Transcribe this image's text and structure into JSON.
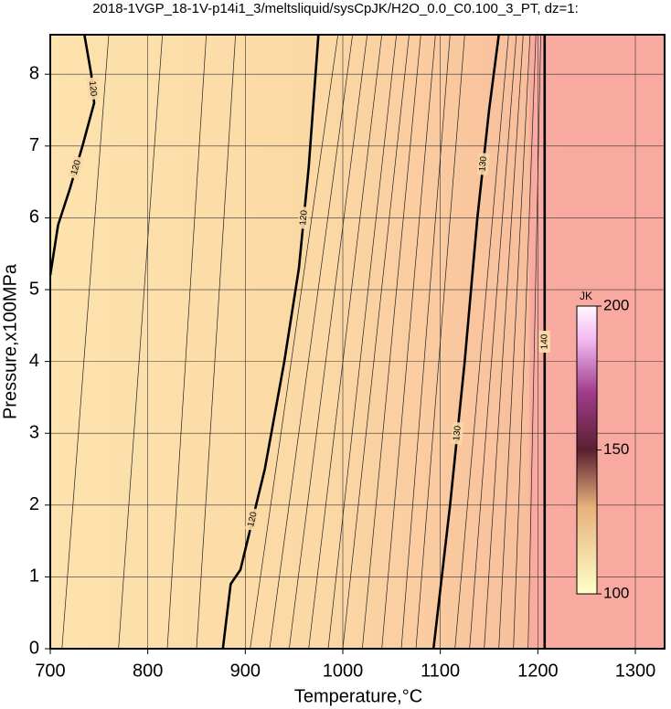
{
  "chart_data": {
    "type": "contour",
    "title": "2018-1VGP_18-1V-p14i1_3/meltsliquid/sysCpJK/H2O_0.0_C0.100_3_PT, dz=1:",
    "x_label": "Temperature,°C",
    "y_label": "Pressure,x100MPa",
    "xlim": [
      700,
      1330
    ],
    "ylim": [
      0,
      8.55
    ],
    "xticks": [
      700,
      800,
      900,
      1000,
      1100,
      1200,
      1300
    ],
    "yticks": [
      0,
      1,
      2,
      3,
      4,
      5,
      6,
      7,
      8
    ],
    "grid": true,
    "major_contours": [
      {
        "level": 120,
        "x": [
          700,
          708,
          720,
          733,
          745,
          742,
          735
        ],
        "y": [
          5.2,
          5.9,
          6.4,
          7.0,
          7.6,
          8.0,
          8.55
        ]
      },
      {
        "level": 120,
        "x": [
          877,
          885,
          895,
          920,
          940,
          955,
          965,
          975
        ],
        "y": [
          0,
          0.9,
          1.1,
          2.5,
          4.0,
          5.3,
          6.7,
          8.55
        ]
      },
      {
        "level": 130,
        "x": [
          1093,
          1110,
          1125,
          1138,
          1150,
          1160
        ],
        "y": [
          0,
          2,
          4,
          6,
          7.5,
          8.55
        ]
      },
      {
        "level": 140,
        "x": [
          1207,
          1207
        ],
        "y": [
          0,
          8.55
        ]
      }
    ],
    "minor_contours": [
      {
        "x": [
          712,
          760
        ],
        "y": [
          0,
          8.55
        ]
      },
      {
        "x": [
          770,
          815
        ],
        "y": [
          0,
          8.55
        ]
      },
      {
        "x": [
          820,
          860
        ],
        "y": [
          0,
          8.55
        ]
      },
      {
        "x": [
          850,
          890
        ],
        "y": [
          0,
          8.55
        ]
      },
      {
        "x": [
          905,
          995
        ],
        "y": [
          0,
          8.55
        ]
      },
      {
        "x": [
          925,
          1010
        ],
        "y": [
          0,
          8.55
        ]
      },
      {
        "x": [
          945,
          1025
        ],
        "y": [
          0,
          8.55
        ]
      },
      {
        "x": [
          965,
          1040
        ],
        "y": [
          0,
          8.55
        ]
      },
      {
        "x": [
          985,
          1055
        ],
        "y": [
          0,
          8.55
        ]
      },
      {
        "x": [
          1000,
          1068
        ],
        "y": [
          0,
          8.55
        ]
      },
      {
        "x": [
          1020,
          1080
        ],
        "y": [
          0,
          8.55
        ]
      },
      {
        "x": [
          1040,
          1095
        ],
        "y": [
          0,
          8.55
        ]
      },
      {
        "x": [
          1060,
          1110
        ],
        "y": [
          0,
          8.55
        ]
      },
      {
        "x": [
          1075,
          1125
        ],
        "y": [
          0,
          8.55
        ]
      },
      {
        "x": [
          1115,
          1170
        ],
        "y": [
          0,
          8.55
        ]
      },
      {
        "x": [
          1130,
          1178
        ],
        "y": [
          0,
          8.55
        ]
      },
      {
        "x": [
          1145,
          1185
        ],
        "y": [
          0,
          8.55
        ]
      },
      {
        "x": [
          1160,
          1192
        ],
        "y": [
          0,
          8.55
        ]
      },
      {
        "x": [
          1175,
          1198
        ],
        "y": [
          0,
          8.55
        ]
      },
      {
        "x": [
          1190,
          1203
        ],
        "y": [
          0,
          8.55
        ]
      }
    ],
    "colorbar": {
      "label": "JK",
      "lim": [
        100,
        200
      ],
      "ticks": [
        100,
        150,
        200
      ]
    }
  }
}
